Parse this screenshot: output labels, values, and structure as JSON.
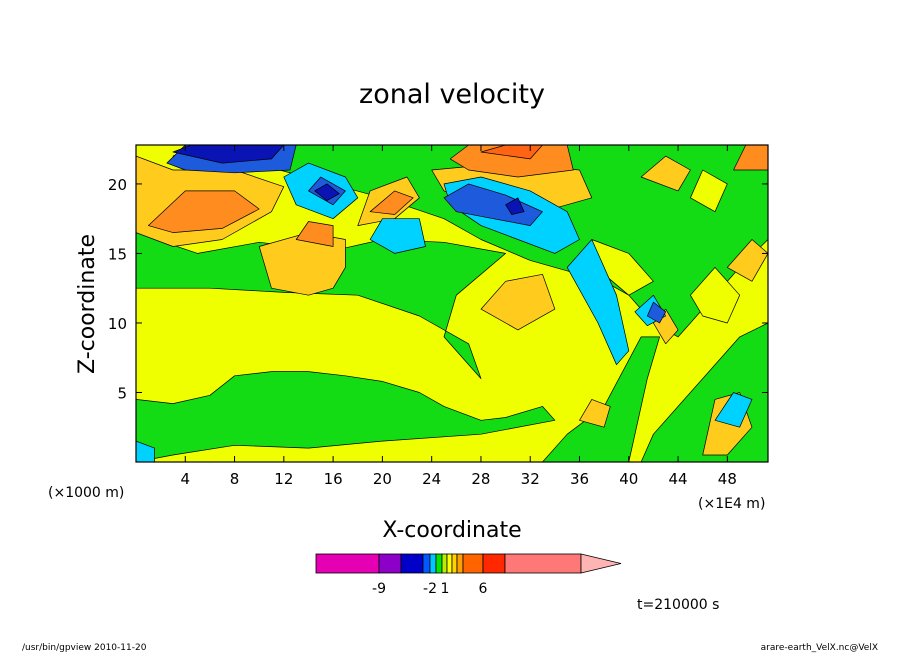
{
  "chart_data": {
    "type": "heatmap",
    "title": "zonal velocity",
    "xlabel": "X-coordinate",
    "ylabel": "Z-coordinate",
    "x_unit_left": "(×1000 m)",
    "x_unit_right": "(×1E4 m)",
    "x_ticks": [
      4,
      8,
      12,
      16,
      20,
      24,
      28,
      32,
      36,
      40,
      44,
      48
    ],
    "y_ticks": [
      5,
      10,
      15,
      20
    ],
    "xlim": [
      0,
      51.3
    ],
    "ylim": [
      0,
      22.8
    ],
    "colorbar": {
      "labels": [
        {
          "text": "-9",
          "value": -9
        },
        {
          "text": "-2",
          "value": -2
        },
        {
          "text": "1",
          "value": 1
        },
        {
          "text": "6",
          "value": 6
        }
      ],
      "colors": [
        "#e600b4",
        "#8c00c8",
        "#0000c8",
        "#005aff",
        "#00c8ff",
        "#00e600",
        "#b4f000",
        "#ffff00",
        "#ffd200",
        "#ffa000",
        "#ff6400",
        "#ff2800",
        "#ff7878",
        "#ffb4b4"
      ]
    },
    "color_levels": {
      "dark_blue": "#0a14b4",
      "blue": "#1e5adc",
      "cyan": "#00d2ff",
      "green": "#14dc14",
      "yellow": "#f0ff00",
      "gold": "#ffcc1e",
      "orange": "#ff8c1e",
      "red_orange": "#ff6414"
    },
    "regions": [
      {
        "level": "yellow",
        "pts": [
          [
            0,
            0
          ],
          [
            51.3,
            0
          ],
          [
            51.3,
            22.8
          ],
          [
            0,
            22.8
          ]
        ]
      },
      {
        "level": "green",
        "pts": [
          [
            0,
            0
          ],
          [
            0,
            4.5
          ],
          [
            3,
            4.2
          ],
          [
            6,
            4.8
          ],
          [
            8,
            6.2
          ],
          [
            11,
            6.5
          ],
          [
            14,
            6.5
          ],
          [
            17,
            6.2
          ],
          [
            20,
            5.8
          ],
          [
            23,
            5
          ],
          [
            25,
            4
          ],
          [
            28,
            3
          ],
          [
            30,
            3.2
          ],
          [
            33,
            4
          ],
          [
            34,
            3
          ],
          [
            28,
            2
          ],
          [
            20,
            1.5
          ],
          [
            14,
            1
          ],
          [
            8,
            1.2
          ],
          [
            3,
            0.5
          ],
          [
            0,
            0
          ]
        ]
      },
      {
        "level": "green",
        "pts": [
          [
            0,
            12.5
          ],
          [
            0,
            16.5
          ],
          [
            5,
            15
          ],
          [
            10,
            15.8
          ],
          [
            16,
            15.2
          ],
          [
            20,
            16
          ],
          [
            25,
            15.8
          ],
          [
            30,
            15
          ],
          [
            26,
            12
          ],
          [
            25,
            9
          ],
          [
            28,
            6
          ],
          [
            27,
            8.5
          ],
          [
            23,
            10.5
          ],
          [
            18,
            12
          ],
          [
            12,
            12.2
          ],
          [
            6,
            12.5
          ]
        ]
      },
      {
        "level": "green",
        "pts": [
          [
            10,
            22.8
          ],
          [
            10,
            21.4
          ],
          [
            20,
            19
          ],
          [
            25,
            17.5
          ],
          [
            28,
            16
          ],
          [
            32,
            14.5
          ],
          [
            38,
            13
          ],
          [
            40,
            12
          ],
          [
            42,
            10
          ],
          [
            44,
            9
          ],
          [
            46,
            11
          ],
          [
            49,
            14
          ],
          [
            51.3,
            16
          ],
          [
            51.3,
            10
          ],
          [
            49,
            9
          ],
          [
            46,
            6
          ],
          [
            44,
            4
          ],
          [
            42,
            2
          ],
          [
            41,
            0
          ],
          [
            51.3,
            0
          ],
          [
            51.3,
            22.8
          ]
        ]
      },
      {
        "level": "green",
        "pts": [
          [
            33,
            0
          ],
          [
            40,
            0
          ],
          [
            41.5,
            6
          ],
          [
            42.5,
            9
          ],
          [
            41,
            9
          ],
          [
            38,
            4
          ],
          [
            35,
            2
          ]
        ]
      },
      {
        "level": "yellow",
        "pts": [
          [
            37,
            16
          ],
          [
            40,
            15
          ],
          [
            42,
            13
          ],
          [
            40,
            12
          ],
          [
            38,
            13.5
          ]
        ]
      },
      {
        "level": "yellow",
        "pts": [
          [
            45,
            12
          ],
          [
            47,
            14
          ],
          [
            49,
            12
          ],
          [
            48,
            10
          ],
          [
            46,
            10.5
          ]
        ]
      },
      {
        "level": "yellow",
        "pts": [
          [
            45,
            19
          ],
          [
            46,
            21
          ],
          [
            48,
            20
          ],
          [
            47,
            18
          ]
        ]
      },
      {
        "level": "gold",
        "pts": [
          [
            0,
            16.5
          ],
          [
            0,
            22
          ],
          [
            3,
            21
          ],
          [
            8,
            21
          ],
          [
            12,
            19.8
          ],
          [
            11,
            18
          ],
          [
            7,
            16
          ],
          [
            3,
            15.5
          ]
        ]
      },
      {
        "level": "gold",
        "pts": [
          [
            10,
            15.5
          ],
          [
            11,
            12.5
          ],
          [
            14,
            12
          ],
          [
            16,
            12.5
          ],
          [
            17,
            14
          ],
          [
            17,
            16
          ],
          [
            14,
            16.5
          ]
        ]
      },
      {
        "level": "gold",
        "pts": [
          [
            18,
            17
          ],
          [
            19,
            19.5
          ],
          [
            22,
            20.5
          ],
          [
            23,
            19
          ],
          [
            21,
            17.5
          ]
        ]
      },
      {
        "level": "gold",
        "pts": [
          [
            24,
            21
          ],
          [
            30,
            21.5
          ],
          [
            36,
            21
          ],
          [
            37,
            19
          ],
          [
            33,
            18
          ],
          [
            28,
            18.5
          ],
          [
            25,
            19.5
          ]
        ]
      },
      {
        "level": "gold",
        "pts": [
          [
            28,
            11
          ],
          [
            30,
            13
          ],
          [
            33,
            13.5
          ],
          [
            34,
            11
          ],
          [
            31,
            9.5
          ]
        ]
      },
      {
        "level": "gold",
        "pts": [
          [
            46,
            0.5
          ],
          [
            47,
            4.5
          ],
          [
            49,
            5
          ],
          [
            50,
            2.5
          ],
          [
            48,
            0.5
          ]
        ]
      },
      {
        "level": "gold",
        "pts": [
          [
            36,
            3
          ],
          [
            37,
            4.5
          ],
          [
            38.5,
            4
          ],
          [
            38,
            2.5
          ]
        ]
      },
      {
        "level": "gold",
        "pts": [
          [
            41,
            20.5
          ],
          [
            43,
            22
          ],
          [
            45,
            21
          ],
          [
            44,
            19.5
          ]
        ]
      },
      {
        "level": "gold",
        "pts": [
          [
            48,
            14
          ],
          [
            50,
            16
          ],
          [
            51.3,
            15
          ],
          [
            50,
            13
          ]
        ]
      },
      {
        "level": "gold",
        "pts": [
          [
            42,
            10
          ],
          [
            43,
            11
          ],
          [
            44,
            9.5
          ],
          [
            43,
            8.5
          ]
        ]
      },
      {
        "level": "orange",
        "pts": [
          [
            1,
            17
          ],
          [
            4,
            19.5
          ],
          [
            8,
            19.5
          ],
          [
            10,
            18.2
          ],
          [
            7,
            16.8
          ],
          [
            3,
            16.5
          ]
        ]
      },
      {
        "level": "orange",
        "pts": [
          [
            13,
            16
          ],
          [
            14,
            17.3
          ],
          [
            16,
            17
          ],
          [
            16,
            15.5
          ]
        ]
      },
      {
        "level": "orange",
        "pts": [
          [
            19,
            18
          ],
          [
            21,
            19.5
          ],
          [
            22.5,
            19
          ],
          [
            21,
            17.8
          ]
        ]
      },
      {
        "level": "orange",
        "pts": [
          [
            25.5,
            21.8
          ],
          [
            27,
            22.8
          ],
          [
            35,
            22.8
          ],
          [
            35.5,
            21
          ],
          [
            31,
            20.5
          ],
          [
            27,
            21
          ]
        ]
      },
      {
        "level": "orange",
        "pts": [
          [
            48.5,
            21
          ],
          [
            49.5,
            22.8
          ],
          [
            51.3,
            22.8
          ],
          [
            51.3,
            21
          ]
        ]
      },
      {
        "level": "red_orange",
        "pts": [
          [
            28,
            22.3
          ],
          [
            30,
            22.8
          ],
          [
            33,
            22.8
          ],
          [
            32,
            21.8
          ]
        ]
      },
      {
        "level": "cyan",
        "pts": [
          [
            12,
            20.5
          ],
          [
            14,
            21.5
          ],
          [
            17,
            20.5
          ],
          [
            18,
            19
          ],
          [
            16,
            17.5
          ],
          [
            13,
            18.5
          ]
        ]
      },
      {
        "level": "cyan",
        "pts": [
          [
            19,
            16
          ],
          [
            20,
            17.5
          ],
          [
            23,
            17.5
          ],
          [
            23.5,
            15.5
          ],
          [
            21,
            15
          ]
        ]
      },
      {
        "level": "cyan",
        "pts": [
          [
            25,
            20
          ],
          [
            28,
            20.5
          ],
          [
            32,
            19.5
          ],
          [
            35,
            18
          ],
          [
            36,
            16
          ],
          [
            34,
            15
          ],
          [
            31,
            16
          ],
          [
            28,
            17
          ],
          [
            25.5,
            18.5
          ]
        ]
      },
      {
        "level": "cyan",
        "pts": [
          [
            35,
            14
          ],
          [
            37,
            16
          ],
          [
            39,
            12
          ],
          [
            40,
            8
          ],
          [
            39,
            7
          ],
          [
            37.5,
            10
          ]
        ]
      },
      {
        "level": "cyan",
        "pts": [
          [
            40.5,
            10.8
          ],
          [
            42,
            12
          ],
          [
            43,
            10.5
          ],
          [
            41.5,
            9.8
          ]
        ]
      },
      {
        "level": "cyan",
        "pts": [
          [
            47,
            3
          ],
          [
            48.5,
            5
          ],
          [
            50,
            4.5
          ],
          [
            49,
            2.5
          ]
        ]
      },
      {
        "level": "cyan",
        "pts": [
          [
            0,
            0
          ],
          [
            0,
            1.5
          ],
          [
            1.5,
            1
          ],
          [
            1.5,
            0
          ]
        ]
      },
      {
        "level": "cyan",
        "pts": [
          [
            3,
            22
          ],
          [
            5,
            22.8
          ],
          [
            10,
            22.8
          ],
          [
            8,
            21.8
          ]
        ]
      },
      {
        "level": "blue",
        "pts": [
          [
            2.5,
            21.5
          ],
          [
            4,
            22.8
          ],
          [
            13,
            22.8
          ],
          [
            12.5,
            21
          ],
          [
            8,
            20.8
          ],
          [
            4,
            21
          ]
        ]
      },
      {
        "level": "blue",
        "pts": [
          [
            14,
            19.5
          ],
          [
            15,
            20.5
          ],
          [
            17,
            19.5
          ],
          [
            16,
            18.5
          ]
        ]
      },
      {
        "level": "blue",
        "pts": [
          [
            25,
            19
          ],
          [
            27,
            20
          ],
          [
            30,
            19.2
          ],
          [
            33,
            18
          ],
          [
            32,
            17
          ],
          [
            29,
            17.5
          ],
          [
            26,
            18
          ]
        ]
      },
      {
        "level": "blue",
        "pts": [
          [
            41.5,
            10.5
          ],
          [
            42,
            11.5
          ],
          [
            43,
            10.8
          ],
          [
            42.5,
            10
          ]
        ]
      },
      {
        "level": "dark_blue",
        "pts": [
          [
            3,
            22.3
          ],
          [
            4.5,
            22.8
          ],
          [
            12,
            22.8
          ],
          [
            11,
            21.8
          ],
          [
            7,
            21.5
          ]
        ]
      },
      {
        "level": "dark_blue",
        "pts": [
          [
            14.5,
            19.5
          ],
          [
            15.5,
            20
          ],
          [
            16.5,
            19.3
          ],
          [
            15.5,
            18.8
          ]
        ]
      },
      {
        "level": "dark_blue",
        "pts": [
          [
            30,
            18.5
          ],
          [
            31,
            19
          ],
          [
            31.5,
            18
          ],
          [
            30.5,
            17.8
          ]
        ]
      }
    ]
  },
  "time_label": "t=210000 s",
  "footer_left": "/usr/bin/gpview   2010-11-20",
  "footer_right": "arare-earth_VelX.nc@VelX",
  "colors": {
    "background": "#ffffff",
    "frame": "#000000",
    "contour_line": "#000000"
  }
}
